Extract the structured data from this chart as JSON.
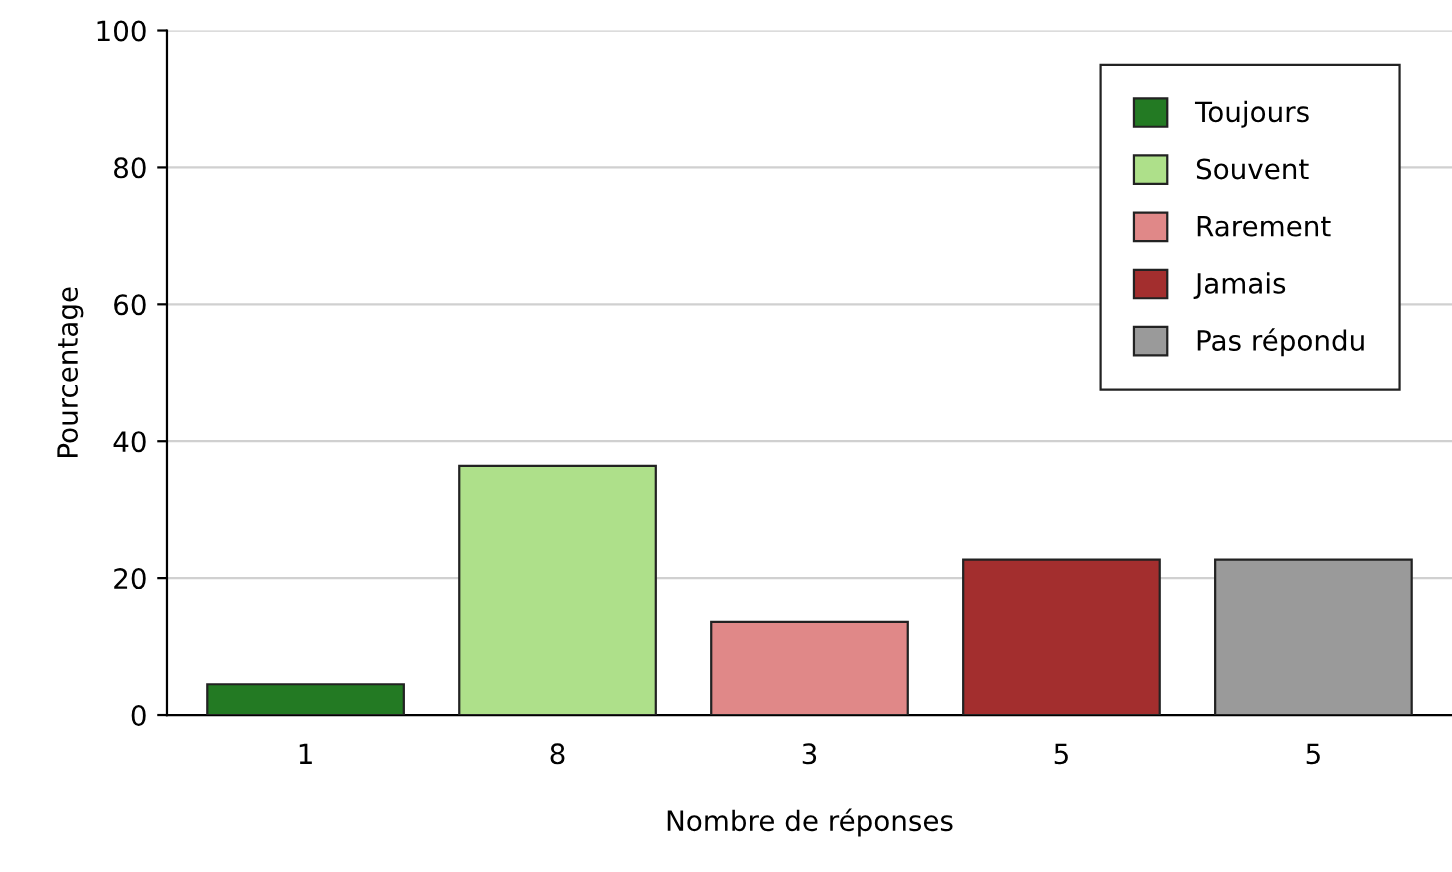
{
  "chart_data": {
    "type": "bar",
    "xlabel": "Nombre de réponses",
    "ylabel": "Pourcentage",
    "categories": [
      "1",
      "8",
      "3",
      "5",
      "5"
    ],
    "series": [
      {
        "name": "Toujours",
        "color": "#237a23",
        "values": [
          4.5,
          null,
          null,
          null,
          null
        ]
      },
      {
        "name": "Souvent",
        "color": "#aee08a",
        "values": [
          null,
          36.4,
          null,
          null,
          null
        ]
      },
      {
        "name": "Rarement",
        "color": "#e08888",
        "values": [
          null,
          null,
          13.6,
          null,
          null
        ]
      },
      {
        "name": "Jamais",
        "color": "#a32e2e",
        "values": [
          null,
          null,
          null,
          22.7,
          null
        ]
      },
      {
        "name": "Pas répondu",
        "color": "#9a9a9a",
        "values": [
          null,
          null,
          null,
          null,
          22.7
        ]
      }
    ],
    "ylim": [
      0,
      100
    ],
    "yticks": [
      0,
      20,
      40,
      60,
      80,
      100
    ],
    "grid": "y",
    "legend": "top right"
  }
}
